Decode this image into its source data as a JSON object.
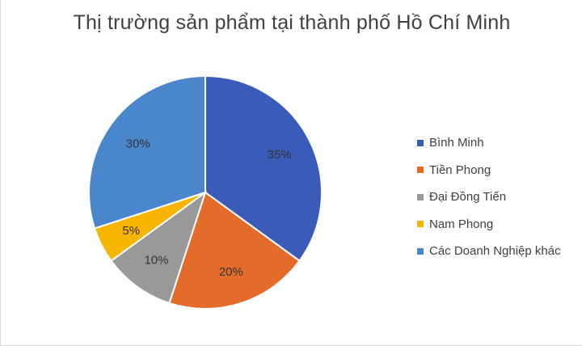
{
  "chart_data": {
    "type": "pie",
    "title": "Thị trường sản phẩm tại thành phố Hồ Chí Minh",
    "categories": [
      "Bình Minh",
      "Tiền Phong",
      "Đại Đồng Tiến",
      "Nam Phong",
      "Các Doanh Nghiệp khác"
    ],
    "values": [
      35,
      20,
      10,
      5,
      30
    ],
    "data_labels": [
      "35%",
      "20%",
      "10%",
      "5%",
      "30%"
    ],
    "colors": [
      "#3a5bb8",
      "#e46c2a",
      "#999999",
      "#f7b500",
      "#4a86cc"
    ],
    "legend_position": "right"
  }
}
